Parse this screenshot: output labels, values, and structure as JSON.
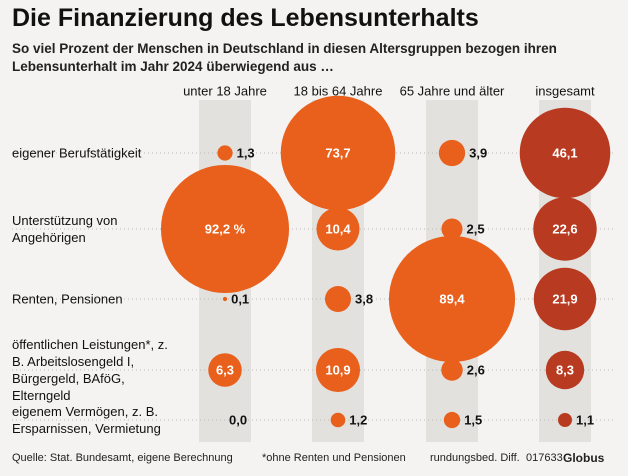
{
  "chart_data": {
    "type": "bubble-matrix",
    "title": "Die Finanzierung des Lebensunterhalts",
    "subtitle": "So viel Prozent der Menschen in Deutschland in diesen Altersgruppen bezogen ihren Lebensunterhalt im Jahr 2024 überwiegend aus …",
    "categories": [
      "eigener Berufstätigkeit",
      "Unterstützung von Angehörigen",
      "Renten, Pensionen",
      "öffentlichen Leistungen*, z. B. Arbeitslosengeld I, Bürgergeld, BAföG, Elterngeld",
      "eigenem Vermögen, z. B. Ersparnissen, Vermietung"
    ],
    "series": [
      {
        "name": "unter 18 Jahre",
        "color": "#e8601c",
        "values": [
          1.3,
          92.2,
          0.1,
          6.3,
          0.0
        ],
        "value_labels": [
          "1,3",
          "92,2 %",
          "0,1",
          "6,3",
          "0,0"
        ]
      },
      {
        "name": "18 bis 64 Jahre",
        "color": "#e8601c",
        "values": [
          73.7,
          10.4,
          3.8,
          10.9,
          1.2
        ],
        "value_labels": [
          "73,7",
          "10,4",
          "3,8",
          "10,9",
          "1,2"
        ]
      },
      {
        "name": "65 Jahre und älter",
        "color": "#e8601c",
        "values": [
          3.9,
          2.5,
          89.4,
          2.6,
          1.5
        ],
        "value_labels": [
          "3,9",
          "2,5",
          "89,4",
          "2,6",
          "1,5"
        ]
      },
      {
        "name": "insgesamt",
        "color": "#b83a20",
        "values": [
          46.1,
          22.6,
          21.9,
          8.3,
          1.1
        ],
        "value_labels": [
          "46,1",
          "22,6",
          "21,9",
          "8,3",
          "1,1"
        ]
      }
    ],
    "source": "Quelle: Stat. Bundesamt, eigene Berechnung",
    "footnote": "*ohne Renten und Pensionen",
    "note": "rundungsbed. Diff.",
    "code": "017633",
    "brand": "Globus"
  }
}
